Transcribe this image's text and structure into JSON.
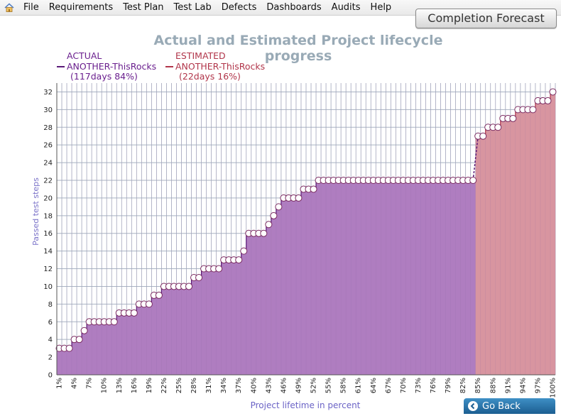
{
  "menu": {
    "items": [
      "File",
      "Requirements",
      "Test Plan",
      "Test Lab",
      "Defects",
      "Dashboards",
      "Audits",
      "Help"
    ]
  },
  "forecast_button": "Completion Forecast",
  "go_back_button": "Go Back",
  "colors": {
    "actual_fill": "#af7dc0",
    "actual_line": "#5a1a78",
    "estimated_fill": "#d895a0",
    "estimated_line": "#b1354a",
    "title": "#99aab6",
    "grid": "#a8b2c2",
    "marker_stroke": "#7a2a60"
  },
  "chart_data": {
    "type": "area",
    "title": "Actual and Estimated Project lifecycle progress",
    "xlabel": "Project lifetime in percent",
    "ylabel": "Passed test steps",
    "ylim": [
      0,
      33
    ],
    "yticks": [
      0,
      2,
      4,
      6,
      8,
      10,
      12,
      14,
      16,
      18,
      20,
      22,
      24,
      26,
      28,
      30,
      32
    ],
    "x_tick_labels": [
      "1%",
      "4%",
      "7%",
      "10%",
      "13%",
      "16%",
      "19%",
      "22%",
      "25%",
      "28%",
      "31%",
      "34%",
      "37%",
      "40%",
      "43%",
      "46%",
      "49%",
      "52%",
      "55%",
      "58%",
      "61%",
      "64%",
      "67%",
      "70%",
      "73%",
      "76%",
      "79%",
      "82%",
      "85%",
      "88%",
      "91%",
      "94%",
      "97%",
      "100%"
    ],
    "x_tick_values": [
      1,
      4,
      7,
      10,
      13,
      16,
      19,
      22,
      25,
      28,
      31,
      34,
      37,
      40,
      43,
      46,
      49,
      52,
      55,
      58,
      61,
      64,
      67,
      70,
      73,
      76,
      79,
      82,
      85,
      88,
      91,
      94,
      97,
      100
    ],
    "grid": true,
    "legend_position": "top-left",
    "series": [
      {
        "name": "ACTUAL",
        "label": "ANOTHER-ThisRocks",
        "note": "(117days 84%)",
        "x": [
          1,
          2,
          3,
          4,
          5,
          6,
          7,
          8,
          9,
          10,
          11,
          12,
          13,
          14,
          15,
          16,
          17,
          18,
          19,
          20,
          21,
          22,
          23,
          24,
          25,
          26,
          27,
          28,
          29,
          30,
          31,
          32,
          33,
          34,
          35,
          36,
          37,
          38,
          39,
          40,
          41,
          42,
          43,
          44,
          45,
          46,
          47,
          48,
          49,
          50,
          51,
          52,
          53,
          54,
          55,
          56,
          57,
          58,
          59,
          60,
          61,
          62,
          63,
          64,
          65,
          66,
          67,
          68,
          69,
          70,
          71,
          72,
          73,
          74,
          75,
          76,
          77,
          78,
          79,
          80,
          81,
          82,
          83,
          84
        ],
        "y": [
          3,
          3,
          3,
          4,
          4,
          5,
          6,
          6,
          6,
          6,
          6,
          6,
          7,
          7,
          7,
          7,
          8,
          8,
          8,
          9,
          9,
          10,
          10,
          10,
          10,
          10,
          10,
          11,
          11,
          12,
          12,
          12,
          12,
          13,
          13,
          13,
          13,
          14,
          16,
          16,
          16,
          16,
          17,
          18,
          19,
          20,
          20,
          20,
          20,
          21,
          21,
          21,
          22,
          22,
          22,
          22,
          22,
          22,
          22,
          22,
          22,
          22,
          22,
          22,
          22,
          22,
          22,
          22,
          22,
          22,
          22,
          22,
          22,
          22,
          22,
          22,
          22,
          22,
          22,
          22,
          22,
          22,
          22,
          22
        ]
      },
      {
        "name": "ESTIMATED",
        "label": "ANOTHER-ThisRocks",
        "note": "(22days 16%)",
        "x": [
          85,
          86,
          87,
          88,
          89,
          90,
          91,
          92,
          93,
          94,
          95,
          96,
          97,
          98,
          99,
          100
        ],
        "y": [
          27,
          27,
          28,
          28,
          28,
          29,
          29,
          29,
          30,
          30,
          30,
          30,
          31,
          31,
          31,
          32
        ]
      }
    ]
  }
}
